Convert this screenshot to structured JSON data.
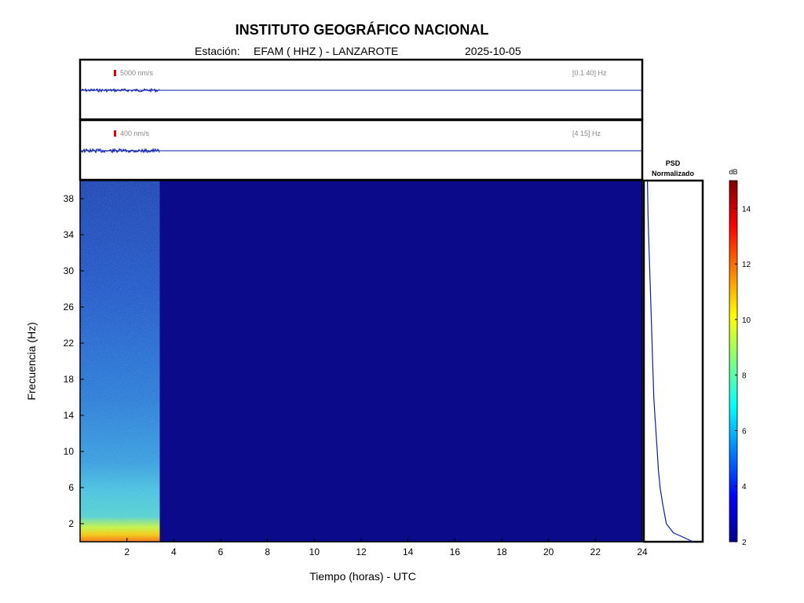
{
  "header": {
    "title": "INSTITUTO GEOGRÁFICO NACIONAL",
    "station_label": "Estación:",
    "station": "EFAM ( HHZ ) - LANZAROTE",
    "date": "2025-10-05"
  },
  "colors": {
    "trace": "#0a1ea8",
    "scale_marker": "#e00000",
    "background_spectrogram": "#0a0a8a",
    "frame": "#000000"
  },
  "chart_data": [
    {
      "type": "line",
      "name": "broadband-trace",
      "scale_text": "5000 nm/s",
      "filter_text": "[0.1 40] Hz",
      "data_end_hours": 3.4,
      "xlim": [
        0,
        24
      ]
    },
    {
      "type": "line",
      "name": "filtered-trace",
      "scale_text": "400 nm/s",
      "filter_text": "[4 15] Hz",
      "data_end_hours": 3.4,
      "xlim": [
        0,
        24
      ]
    },
    {
      "type": "heatmap",
      "xlabel": "Tiempo (horas) - UTC",
      "ylabel": "Frecuencia  (Hz)",
      "xlim": [
        0,
        24
      ],
      "ylim": [
        0,
        40
      ],
      "xticks": [
        2,
        4,
        6,
        8,
        10,
        12,
        14,
        16,
        18,
        20,
        22,
        24
      ],
      "yticks": [
        2,
        6,
        10,
        14,
        18,
        22,
        26,
        30,
        34,
        38
      ],
      "data_end_hours": 3.4,
      "colorbar": {
        "label": "dB",
        "range": [
          2,
          15
        ],
        "ticks": [
          2,
          4,
          6,
          8,
          10,
          12,
          14
        ],
        "colormap": "jet"
      }
    },
    {
      "type": "line",
      "title": "PSD\nNormalizado",
      "title_lines": [
        "PSD",
        "Normalizado"
      ],
      "x": [
        0.05,
        0.06,
        0.08,
        0.1,
        0.12,
        0.14,
        0.16,
        0.18,
        0.2,
        0.22,
        0.24,
        0.27,
        0.32,
        0.38,
        0.5,
        0.85
      ],
      "y": [
        40,
        36,
        32,
        28,
        24,
        20,
        16,
        14,
        12,
        10,
        8,
        6,
        4,
        2,
        1,
        0
      ],
      "ylim": [
        0,
        40
      ]
    }
  ]
}
